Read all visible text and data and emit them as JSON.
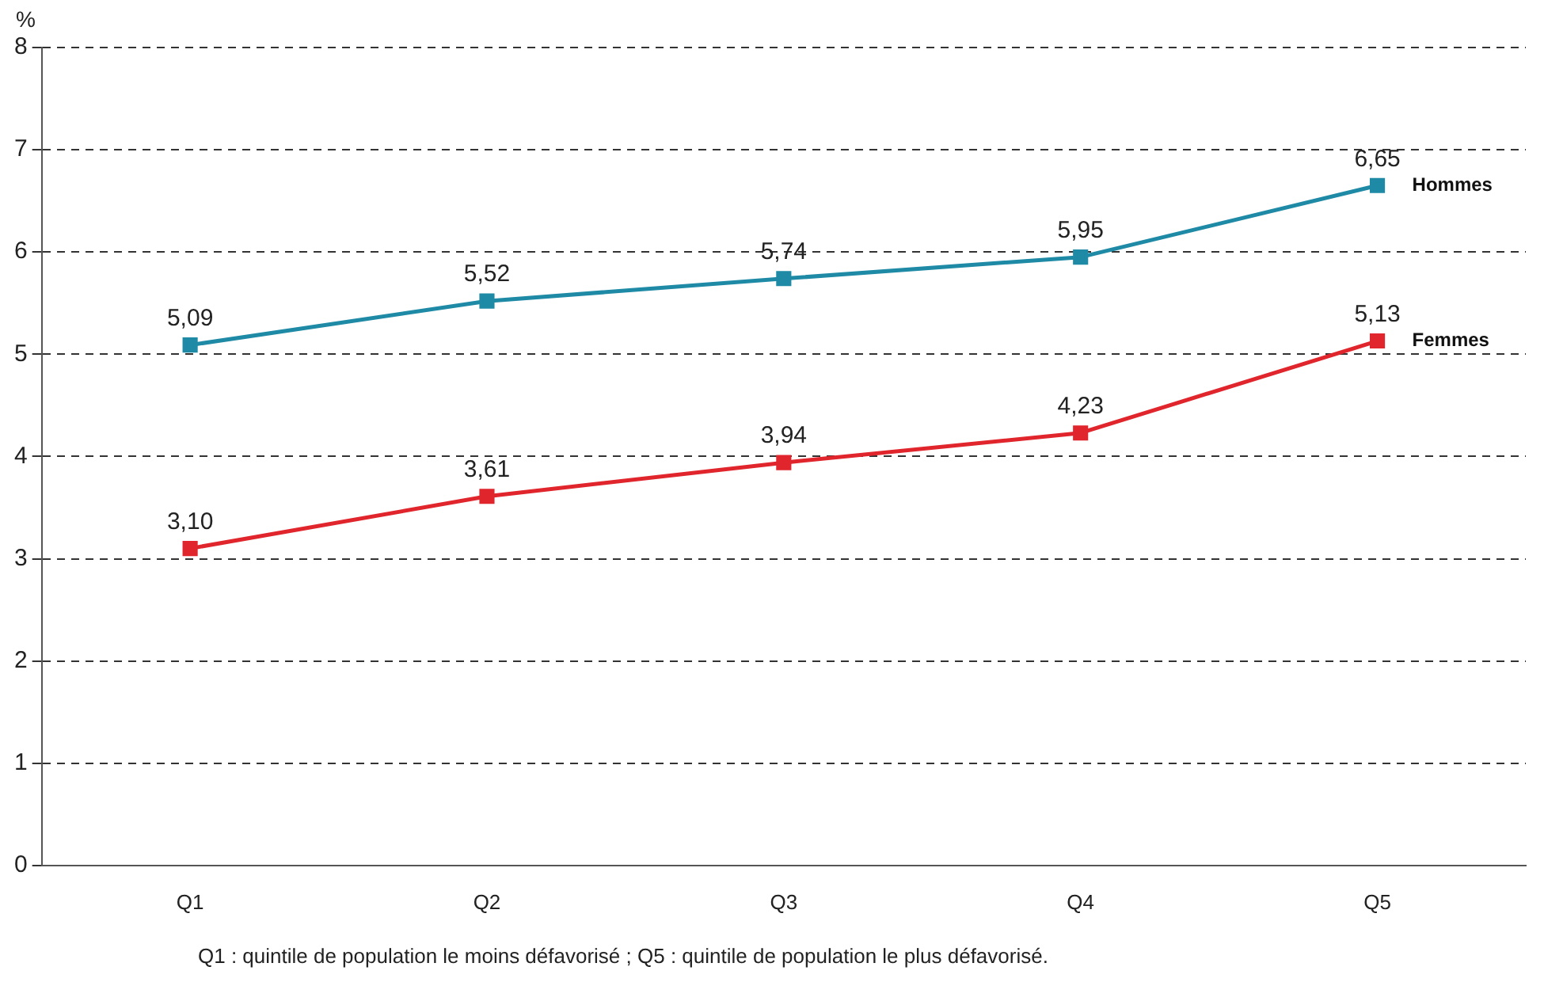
{
  "chart_data": {
    "type": "line",
    "ylabel": "%",
    "categories": [
      "Q1",
      "Q2",
      "Q3",
      "Q4",
      "Q5"
    ],
    "series": [
      {
        "name": "Hommes",
        "color": "#1f8aa6",
        "values": [
          5.09,
          5.52,
          5.74,
          5.95,
          6.65
        ],
        "value_labels": [
          "5,09",
          "5,52",
          "5,74",
          "5,95",
          "6,65"
        ]
      },
      {
        "name": "Femmes",
        "color": "#e0262c",
        "values": [
          3.1,
          3.61,
          3.94,
          4.23,
          5.13
        ],
        "value_labels": [
          "3,10",
          "3,61",
          "3,94",
          "4,23",
          "5,13"
        ]
      }
    ],
    "ylim": [
      0,
      8
    ],
    "yticks": [
      0,
      1,
      2,
      3,
      4,
      5,
      6,
      7,
      8
    ],
    "grid": "y",
    "legend": false,
    "marker": "square",
    "line_style": "solid",
    "annotations": [
      "Q1 : quintile de population le moins défavorisé ; Q5 : quintile de population le plus défavorisé."
    ]
  }
}
